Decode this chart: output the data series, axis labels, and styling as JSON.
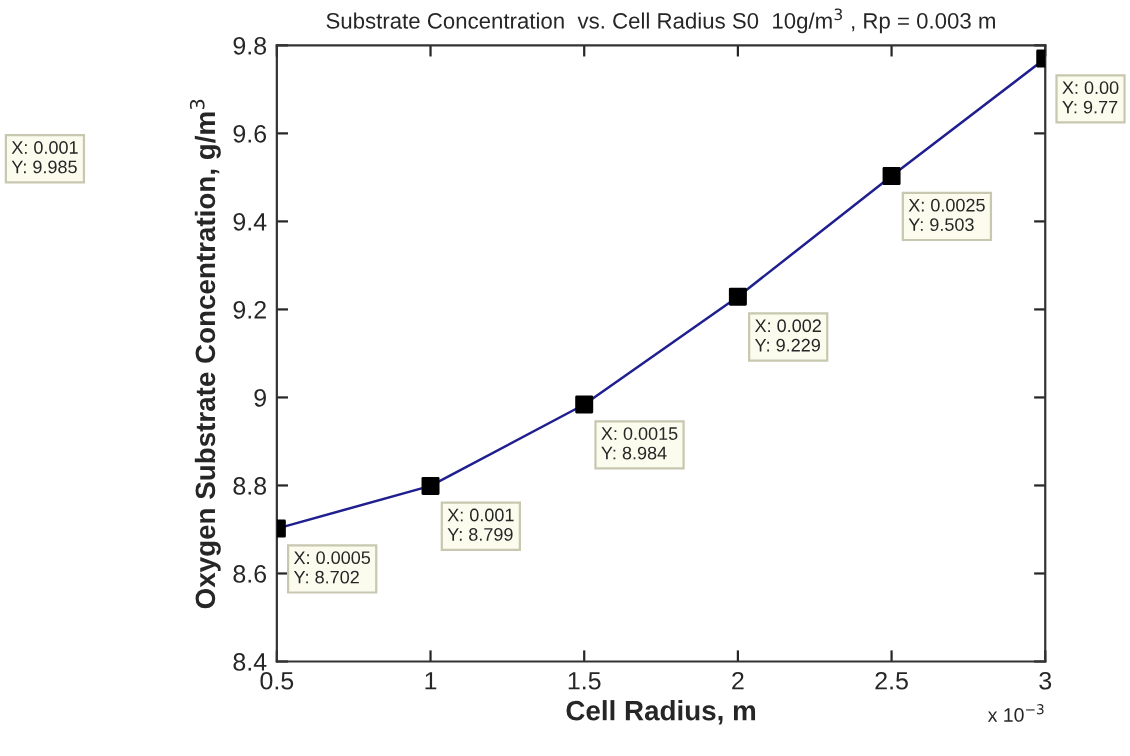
{
  "chart_data": {
    "type": "line",
    "title": "Substrate Concentration  vs. Cell Radius S0  10g/m$^{3}$ , Rp = 0.003 m",
    "xlabel": "Cell Radius, m",
    "ylabel": "Oxygen Substrate Concentration, g/m$^{3}$",
    "x": [
      0.5,
      1,
      1.5,
      2,
      2.5,
      3
    ],
    "series": [
      {
        "color": "#1f1f8f",
        "colors": [
          "#000000",
          "#000000",
          "#000000",
          "#000000",
          "#000000",
          "#000000"
        ],
        "values": [
          8.702,
          8.799,
          8.984,
          9.229,
          9.503,
          9.77
        ],
        "value_labels": [
          "X: 0.0005\nY: 8.702",
          "X: 0.001\nY: 8.799",
          "X: 0.0015\nY: 8.984",
          "X: 0.002\nY: 9.229",
          "X: 0.0025\nY: 9.503",
          "X: 0.00\nY: 9.77"
        ]
      }
    ],
    "xlim": [
      0.5,
      3
    ],
    "xticks": [
      0.5,
      1,
      1.5,
      2,
      2.5,
      3
    ],
    "ylim": [
      8.4,
      9.8
    ],
    "yticks": [
      8.4,
      8.6,
      8.8,
      9,
      9.2,
      9.4,
      9.6,
      9.8
    ],
    "annotations": [
      "x 10$^{−3}$",
      "X: 0.001\nY: 9.985"
    ],
    "marker": "square",
    "line_style": "solid",
    "grid": false,
    "legend": false
  }
}
